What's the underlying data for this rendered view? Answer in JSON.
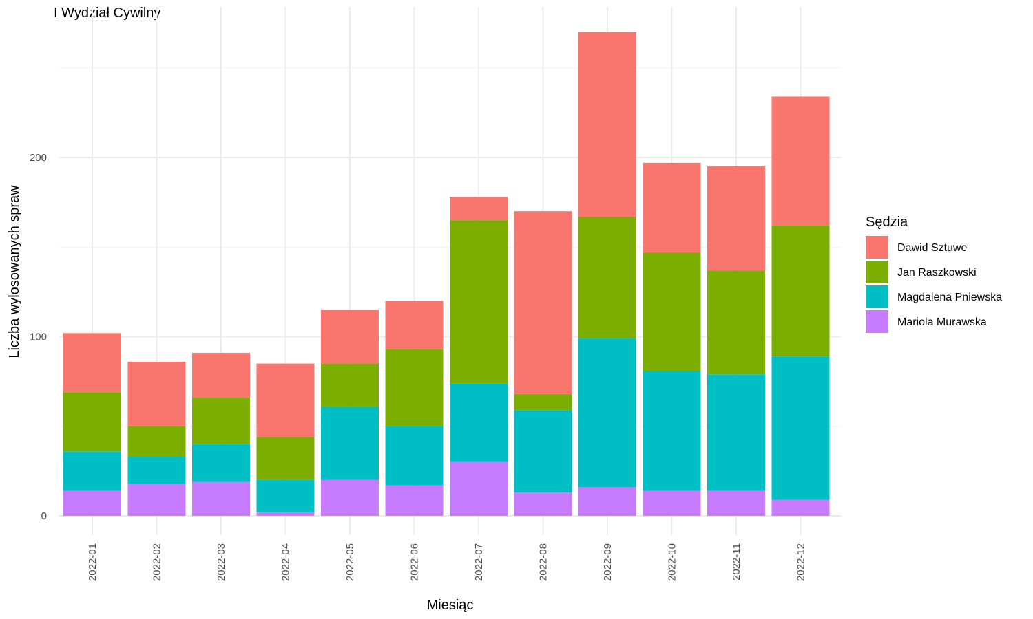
{
  "chart_data": {
    "type": "bar",
    "stacked": true,
    "title": "I Wydział Cywilny",
    "xlabel": "Miesiąc",
    "ylabel": "Liczba wylosowanych spraw",
    "ylim": [
      0,
      285
    ],
    "yticks": [
      0,
      100,
      200
    ],
    "grid": true,
    "legend": {
      "title": "Sędzia",
      "position": "right"
    },
    "categories": [
      "2022-01",
      "2022-02",
      "2022-03",
      "2022-04",
      "2022-05",
      "2022-06",
      "2022-07",
      "2022-08",
      "2022-09",
      "2022-10",
      "2022-11",
      "2022-12"
    ],
    "series": [
      {
        "name": "Mariola Murawska",
        "color": "#C77CFF",
        "values": [
          14,
          18,
          19,
          2,
          20,
          17,
          30,
          13,
          16,
          14,
          14,
          9
        ]
      },
      {
        "name": "Magdalena Pniewska",
        "color": "#00BFC4",
        "values": [
          22,
          15,
          21,
          18,
          41,
          33,
          44,
          46,
          83,
          67,
          65,
          80
        ]
      },
      {
        "name": "Jan Raszkowski",
        "color": "#7CAE00",
        "values": [
          33,
          17,
          26,
          24,
          24,
          43,
          91,
          9,
          68,
          66,
          58,
          73
        ]
      },
      {
        "name": "Dawid Sztuwe",
        "color": "#F8766D",
        "values": [
          33,
          36,
          25,
          41,
          30,
          27,
          13,
          102,
          103,
          50,
          58,
          72
        ]
      }
    ],
    "legend_order": [
      "Dawid Sztuwe",
      "Jan Raszkowski",
      "Magdalena Pniewska",
      "Mariola Murawska"
    ]
  }
}
